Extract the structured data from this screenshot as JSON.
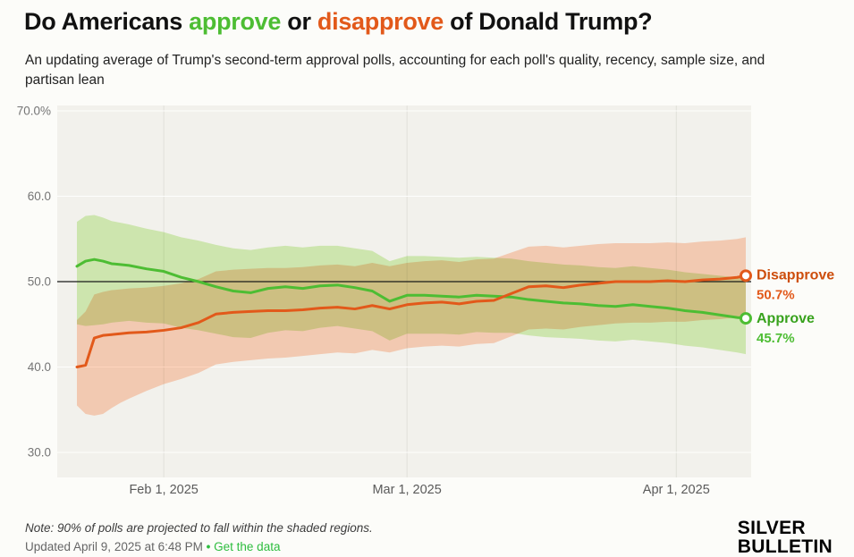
{
  "header": {
    "title_parts": [
      {
        "text": "Do Americans ",
        "color": "#111111"
      },
      {
        "text": "approve",
        "color": "#4dbd33"
      },
      {
        "text": " or ",
        "color": "#111111"
      },
      {
        "text": "disapprove",
        "color": "#e2591a"
      },
      {
        "text": " of Donald Trump?",
        "color": "#111111"
      }
    ],
    "subtitle": "An updating average of Trump's second-term approval polls, accounting for each poll's quality, recency, sample size, and partisan lean"
  },
  "chart_data": {
    "type": "line",
    "title": "Do Americans approve or disapprove of Donald Trump?",
    "x_unit": "days since Jan 22, 2025",
    "xlim": [
      0,
      77
    ],
    "ylim": [
      30,
      70
    ],
    "grid": true,
    "reference_line": 50,
    "legend_position": "right-end-labels",
    "x": [
      0,
      1,
      2,
      3,
      4,
      5,
      6,
      8,
      10,
      12,
      14,
      16,
      18,
      20,
      22,
      24,
      26,
      28,
      30,
      32,
      34,
      36,
      38,
      40,
      42,
      44,
      46,
      48,
      50,
      52,
      54,
      56,
      58,
      60,
      62,
      64,
      66,
      68,
      70,
      72,
      74,
      76,
      77
    ],
    "x_ticks": [
      {
        "day": 10,
        "label": "Feb 1, 2025"
      },
      {
        "day": 38,
        "label": "Mar 1, 2025"
      },
      {
        "day": 69,
        "label": "Apr 1, 2025"
      }
    ],
    "y_ticks": [
      {
        "v": 70,
        "label": "70.0%"
      },
      {
        "v": 60,
        "label": "60.0"
      },
      {
        "v": 50,
        "label": "50.0"
      },
      {
        "v": 40,
        "label": "40.0"
      },
      {
        "v": 30,
        "label": "30.0"
      }
    ],
    "series": [
      {
        "name": "Approve",
        "color": "#4dbd33",
        "band_color": "#d8f3bc",
        "label_color": "#38a21d",
        "end_label": "Approve",
        "end_value": "45.7%",
        "values": [
          51.8,
          52.4,
          52.6,
          52.4,
          52.1,
          52.0,
          51.9,
          51.5,
          51.2,
          50.5,
          50.0,
          49.4,
          48.9,
          48.7,
          49.2,
          49.4,
          49.2,
          49.5,
          49.6,
          49.3,
          48.9,
          47.7,
          48.4,
          48.4,
          48.3,
          48.2,
          48.4,
          48.3,
          48.2,
          47.9,
          47.7,
          47.5,
          47.4,
          47.2,
          47.1,
          47.3,
          47.1,
          46.9,
          46.6,
          46.4,
          46.1,
          45.8,
          45.7
        ],
        "hi": [
          57.0,
          57.7,
          57.8,
          57.5,
          57.1,
          56.9,
          56.7,
          56.2,
          55.8,
          55.2,
          54.8,
          54.3,
          53.9,
          53.7,
          54.0,
          54.2,
          54.0,
          54.2,
          54.2,
          53.9,
          53.6,
          52.4,
          53.0,
          53.0,
          52.9,
          52.8,
          52.9,
          52.8,
          52.7,
          52.4,
          52.2,
          52.0,
          51.9,
          51.7,
          51.6,
          51.8,
          51.6,
          51.4,
          51.1,
          50.9,
          50.7,
          50.5,
          50.4
        ],
        "lo": [
          45.0,
          44.8,
          44.9,
          45.0,
          45.2,
          45.3,
          45.4,
          45.2,
          45.1,
          44.6,
          44.3,
          43.9,
          43.5,
          43.4,
          44.0,
          44.3,
          44.2,
          44.6,
          44.8,
          44.5,
          44.2,
          43.1,
          43.9,
          43.9,
          43.9,
          43.8,
          44.1,
          44.0,
          44.0,
          43.7,
          43.5,
          43.4,
          43.3,
          43.1,
          43.0,
          43.2,
          43.0,
          42.8,
          42.5,
          42.3,
          42.0,
          41.7,
          41.5
        ]
      },
      {
        "name": "Disapprove",
        "color": "#e2591a",
        "band_color": "#ffd5bf",
        "label_color": "#cd4e0d",
        "end_label": "Disapprove",
        "end_value": "50.7%",
        "values": [
          40.0,
          40.2,
          43.4,
          43.7,
          43.8,
          43.9,
          44.0,
          44.1,
          44.3,
          44.6,
          45.2,
          46.2,
          46.4,
          46.5,
          46.6,
          46.6,
          46.7,
          46.9,
          47.0,
          46.8,
          47.2,
          46.8,
          47.3,
          47.5,
          47.6,
          47.4,
          47.7,
          47.8,
          48.6,
          49.4,
          49.5,
          49.3,
          49.6,
          49.8,
          50.0,
          50.0,
          50.0,
          50.1,
          50.0,
          50.2,
          50.3,
          50.5,
          50.7
        ],
        "hi": [
          45.5,
          46.5,
          48.5,
          48.8,
          49.0,
          49.1,
          49.2,
          49.3,
          49.5,
          49.8,
          50.3,
          51.2,
          51.4,
          51.5,
          51.6,
          51.6,
          51.7,
          51.9,
          52.0,
          51.8,
          52.2,
          51.8,
          52.2,
          52.4,
          52.5,
          52.3,
          52.6,
          52.7,
          53.4,
          54.1,
          54.2,
          54.0,
          54.2,
          54.4,
          54.5,
          54.5,
          54.5,
          54.6,
          54.5,
          54.7,
          54.8,
          55.0,
          55.2
        ],
        "lo": [
          35.5,
          34.5,
          34.3,
          34.5,
          35.2,
          35.8,
          36.3,
          37.2,
          38.0,
          38.6,
          39.3,
          40.3,
          40.6,
          40.8,
          41.0,
          41.1,
          41.3,
          41.5,
          41.7,
          41.6,
          42.0,
          41.7,
          42.2,
          42.4,
          42.5,
          42.4,
          42.7,
          42.8,
          43.6,
          44.4,
          44.5,
          44.4,
          44.7,
          44.9,
          45.1,
          45.2,
          45.2,
          45.3,
          45.3,
          45.5,
          45.6,
          45.8,
          46.0
        ]
      }
    ],
    "colors": {
      "page_background": "#fcfcf9",
      "plot_background": "#f2f1ec",
      "vertical_grid": "#e1e0d9",
      "horizontal_grid": "#ffffff",
      "reference_line": "#1a1a1a"
    }
  },
  "footer": {
    "note": "Note: 90% of polls are projected to fall within the shaded regions.",
    "updated": "Updated April 9, 2025 at 6:48 PM",
    "separator": "•",
    "link": "Get the data",
    "logo_line1": "SILVER",
    "logo_line2": "BULLETIN"
  }
}
